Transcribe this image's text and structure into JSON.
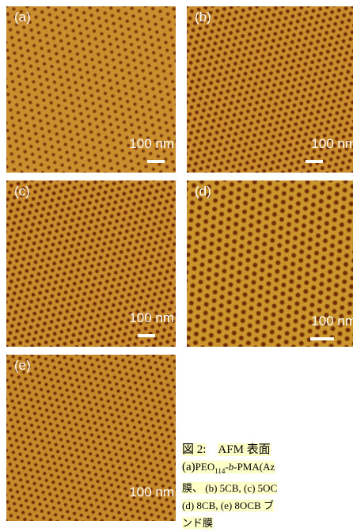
{
  "panels": [
    {
      "label": "(a)",
      "scale_bar": "100 nm"
    },
    {
      "label": "(b)",
      "scale_bar": "100 nm"
    },
    {
      "label": "(c)",
      "scale_bar": "100 nm"
    },
    {
      "label": "(d)",
      "scale_bar": "100 nm"
    },
    {
      "label": "(e)",
      "scale_bar": "100 nm"
    }
  ],
  "caption": {
    "figure_label": "図 2:",
    "line1": "AFM 表面",
    "line2_parts": [
      "(a)",
      "PEO",
      "114",
      "-",
      "b",
      "-PMA(Az"
    ],
    "line3": "膜、 (b) 5CB, (c) 5OC",
    "line4": "(d) 8CB, (e) 8OCB ブ",
    "line5": "ンド膜"
  }
}
